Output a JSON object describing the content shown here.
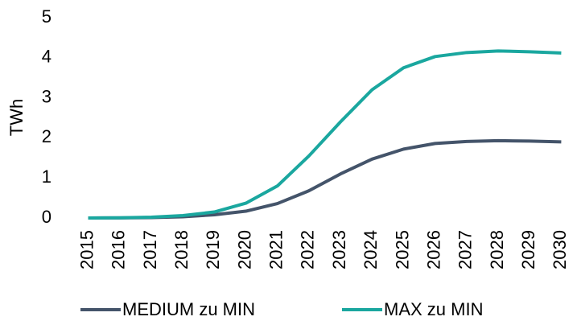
{
  "chart_data": {
    "type": "line",
    "y_label": "TWh",
    "categories": [
      "2015",
      "2016",
      "2017",
      "2018",
      "2019",
      "2020",
      "2021",
      "2022",
      "2023",
      "2024",
      "2025",
      "2026",
      "2027",
      "2028",
      "2029",
      "2030"
    ],
    "series": [
      {
        "name": "MEDIUM zu MIN",
        "color": "#44546a",
        "values": [
          0,
          0.003,
          0.01,
          0.03,
          0.08,
          0.17,
          0.36,
          0.68,
          1.1,
          1.47,
          1.72,
          1.86,
          1.91,
          1.93,
          1.92,
          1.9
        ]
      },
      {
        "name": "MAX zu MIN",
        "color": "#1aa79f",
        "values": [
          0,
          0.005,
          0.02,
          0.06,
          0.15,
          0.37,
          0.8,
          1.55,
          2.4,
          3.2,
          3.75,
          4.03,
          4.13,
          4.17,
          4.15,
          4.12
        ]
      }
    ],
    "ylim": [
      0,
      5
    ],
    "yticks": [
      0,
      1,
      2,
      3,
      4,
      5
    ],
    "legend": "bottom"
  }
}
